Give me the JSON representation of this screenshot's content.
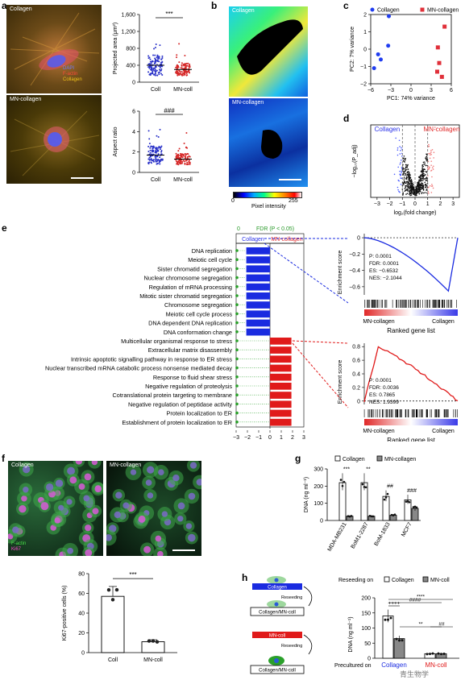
{
  "panel_labels": {
    "a": "a",
    "b": "b",
    "c": "c",
    "d": "d",
    "e": "e",
    "f": "f",
    "g": "g",
    "h": "h"
  },
  "a": {
    "img1_label": "Collagen",
    "img2_label": "MN-collagen",
    "legend": [
      "DAPI",
      "F-actin",
      "Collagen"
    ],
    "legend_colors": [
      "#3a5bff",
      "#e0301e",
      "#f0c21a"
    ]
  },
  "b": {
    "img1_label": "Collagen",
    "img2_label": "MN-collagen",
    "colorbar_title": "Pixel intensity",
    "colorbar_min": "0",
    "colorbar_max": "255"
  },
  "h": {
    "reseeding_on": "Reseeding on",
    "legend": [
      "Collagen",
      "MN-coll"
    ],
    "bar1": "Collagen",
    "bar2": "MN-coll",
    "arrow_text": "Reseeding",
    "dish": "Collagen/MN-coll",
    "precultured": "Precultured on",
    "x_collagen": "Collagen",
    "x_mncoll": "MN-coll"
  },
  "f": {
    "img1_label": "Collagen",
    "img2_label": "MN-collagen",
    "stain1": "F-actin",
    "stain2": "Ki67"
  },
  "chart_data": [
    {
      "id": "a1",
      "type": "scatter",
      "ylabel": "Projected area (μm²)",
      "categories": [
        "Coll",
        "MN-coll"
      ],
      "yticks": [
        "0",
        "400",
        "800",
        "1,200",
        "1,600"
      ],
      "ylim": [
        0,
        1600
      ],
      "means": [
        400,
        300
      ],
      "sig": "***"
    },
    {
      "id": "a2",
      "type": "scatter",
      "ylabel": "Aspect ratio",
      "categories": [
        "Coll",
        "MN-coll"
      ],
      "yticks": [
        "0",
        "2",
        "4",
        "6"
      ],
      "ylim": [
        0,
        6
      ],
      "means": [
        1.7,
        1.3
      ],
      "sig": "###"
    },
    {
      "id": "c",
      "type": "scatter",
      "xlabel": "PC1: 74% variance",
      "ylabel": "PC2: 7% variance",
      "xticks": [
        "−6",
        "−3",
        "0",
        "3",
        "6"
      ],
      "yticks": [
        "−2",
        "−1",
        "0",
        "1",
        "2"
      ],
      "xlim": [
        -6,
        6
      ],
      "ylim": [
        -2,
        2
      ],
      "series": [
        {
          "name": "Collagen",
          "marker": "circle",
          "color": "#1f3cf0",
          "points": [
            [
              -4.9,
              -0.3
            ],
            [
              -4.5,
              -0.6
            ],
            [
              -3.3,
              1.9
            ],
            [
              -3.4,
              0.2
            ],
            [
              -5.5,
              -1.1
            ]
          ]
        },
        {
          "name": "MN-collagen",
          "marker": "square",
          "color": "#e0303a",
          "points": [
            [
              5.0,
              1.3
            ],
            [
              4.0,
              0.1
            ],
            [
              4.2,
              -0.8
            ],
            [
              3.9,
              -1.3
            ],
            [
              4.6,
              -1.6
            ]
          ]
        }
      ]
    },
    {
      "id": "d",
      "type": "scatter",
      "xlabel": "log₂(fold change)",
      "ylabel": "−log₁₀(P_adj)",
      "xticks": [
        "−3",
        "−2",
        "−1",
        "0",
        "1",
        "2",
        "3"
      ],
      "xlim": [
        -3.5,
        3.5
      ],
      "labels": [
        "Collagen",
        "MN-collagen"
      ]
    },
    {
      "id": "e",
      "type": "bar",
      "header": "FDR (P < 0.05)",
      "xlabel": "NES",
      "xticks": [
        "−3",
        "−2",
        "−1",
        "0",
        "1",
        "2",
        "3"
      ],
      "xlim": [
        -3,
        3
      ],
      "col_labels": [
        "Collagen",
        "MN-collagen"
      ],
      "categories": [
        "DNA replication",
        "Meiotic cell cycle",
        "Sister chromatid segregation",
        "Nuclear chromosome segregation",
        "Regulation of mRNA processing",
        "Mitotic sister chromatid segregation",
        "Chromosome segregation",
        "Meiotic cell cycle process",
        "DNA dependent DNA replication",
        "DNA conformation change",
        "Multicellular organismal response to stress",
        "Extracellular matrix disassembly",
        "Intrinsic apoptotic signalling pathway in response to ER stress",
        "Nuclear transcribed mRNA catabolic process nonsense mediated decay",
        "Response to fluid shear stress",
        "Negative regulation of proteolysis",
        "Cotranslational protein targeting to membrane",
        "Negative regulation of peptidase activity",
        "Protein localization to ER",
        "Establishment of protein localization to ER"
      ],
      "values": [
        -2.1,
        -2.1,
        -2.1,
        -2.1,
        -2.1,
        -2.1,
        -2.1,
        -2.1,
        -2.1,
        -2.1,
        1.9,
        1.9,
        1.9,
        1.9,
        1.9,
        1.9,
        1.9,
        1.9,
        1.9,
        1.9
      ]
    },
    {
      "id": "e1",
      "type": "line",
      "ylabel": "Enrichment score",
      "xlabel": "Ranked gene list",
      "yticks": [
        "0",
        "−0.2",
        "−0.4",
        "−0.6"
      ],
      "ylim": [
        -0.7,
        0.05
      ],
      "stats": [
        "P: 0.0001",
        "FDR: 0.0001",
        "ES: −0.6532",
        "NES: −2.1044"
      ],
      "end_labels": [
        "MN-collagen",
        "Collagen"
      ]
    },
    {
      "id": "e2",
      "type": "line",
      "ylabel": "Enrichment score",
      "xlabel": "Ranked gene list",
      "yticks": [
        "0",
        "0.2",
        "0.4",
        "0.6",
        "0.8"
      ],
      "ylim": [
        -0.05,
        0.85
      ],
      "stats": [
        "P: 0.0001",
        "FDR: 0.0036",
        "ES: 0.7865",
        "NES: 1.9399"
      ],
      "end_labels": [
        "MN-collagen",
        "Collagen"
      ]
    },
    {
      "id": "f2",
      "type": "bar",
      "ylabel": "Ki67-positive cells (%)",
      "categories": [
        "Coll",
        "MN-coll"
      ],
      "values": [
        57,
        11
      ],
      "yticks": [
        "0",
        "20",
        "40",
        "60",
        "80"
      ],
      "ylim": [
        0,
        80
      ],
      "sig": "***"
    },
    {
      "id": "g",
      "type": "bar",
      "ylabel": "DNA (ng ml⁻¹)",
      "categories": [
        "MDA-MB231",
        "BoM1-2287",
        "BoM-1833",
        "MCF7"
      ],
      "yticks": [
        "0",
        "100",
        "200",
        "300"
      ],
      "ylim": [
        0,
        300
      ],
      "series": [
        {
          "name": "Collagen",
          "values": [
            220,
            220,
            140,
            120
          ]
        },
        {
          "name": "MN-collagen",
          "values": [
            25,
            25,
            30,
            70
          ]
        }
      ],
      "sig": [
        "***",
        "**",
        "##",
        "###"
      ]
    },
    {
      "id": "h",
      "type": "bar",
      "ylabel": "DNA (ng ml⁻¹)",
      "yticks": [
        "0",
        "50",
        "100",
        "150",
        "200"
      ],
      "ylim": [
        0,
        200
      ],
      "series": [
        {
          "name": "Collagen",
          "values": [
            140,
            15
          ]
        },
        {
          "name": "MN-coll",
          "values": [
            65,
            15
          ]
        }
      ],
      "sig": [
        "++++",
        "####",
        "****",
        "**",
        "##"
      ]
    }
  ],
  "watermark": "青生物学"
}
